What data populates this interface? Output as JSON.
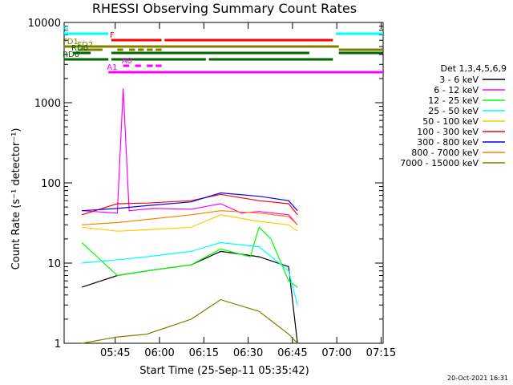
{
  "chart_data": {
    "type": "line",
    "title": "RHESSI Observing Summary Count Rates",
    "xlabel": "Start Time (25-Sep-11 05:35:42)",
    "ylabel": "Count Rate (s⁻¹ detector⁻¹)",
    "yscale": "log",
    "ylim": [
      1,
      10000
    ],
    "xlim_minutes": [
      -8,
      100
    ],
    "x_ticks": [
      "05:45",
      "06:00",
      "06:15",
      "06:30",
      "06:45",
      "07:00",
      "07:15"
    ],
    "y_ticks": [
      "1",
      "10",
      "100",
      "1000",
      "10000"
    ],
    "legend_title": "Det 1,3,4,5,6,9",
    "legend_placement": "right",
    "grid": false,
    "stamp": "20-Oct-2021 16:31",
    "series": [
      {
        "name": "3 - 6 keV",
        "color": "#000000",
        "x": [
          -2,
          10,
          20,
          35,
          45,
          58,
          68,
          71
        ],
        "y": [
          5,
          7,
          8,
          9.5,
          14,
          12,
          9,
          1
        ]
      },
      {
        "name": "6 - 12 keV",
        "color": "#ff00ff",
        "x": [
          -2,
          10,
          12,
          14,
          22,
          35,
          45,
          52,
          58,
          68,
          71
        ],
        "y": [
          45,
          42,
          1500,
          45,
          48,
          47,
          55,
          42,
          44,
          40,
          30
        ]
      },
      {
        "name": "12 - 25 keV",
        "color": "#00ff00",
        "x": [
          -2,
          10,
          20,
          35,
          45,
          55,
          58,
          62,
          68,
          71
        ],
        "y": [
          18,
          7,
          8,
          9.5,
          15,
          12,
          28,
          20,
          6,
          5
        ]
      },
      {
        "name": "25 - 50 keV",
        "color": "#00ffff",
        "x": [
          -2,
          10,
          20,
          35,
          45,
          58,
          68,
          71
        ],
        "y": [
          10,
          11,
          12,
          14,
          18,
          16,
          8,
          3
        ]
      },
      {
        "name": "50 - 100 keV",
        "color": "#ffcc00",
        "x": [
          -2,
          10,
          20,
          35,
          45,
          58,
          68,
          71
        ],
        "y": [
          28,
          25,
          26,
          28,
          40,
          33,
          30,
          25
        ]
      },
      {
        "name": "100 - 300 keV",
        "color": "#ff0000",
        "x": [
          -2,
          10,
          20,
          35,
          45,
          58,
          68,
          71
        ],
        "y": [
          40,
          55,
          56,
          60,
          72,
          60,
          55,
          40
        ]
      },
      {
        "name": "300 - 800 keV",
        "color": "#0000ff",
        "x": [
          -2,
          10,
          20,
          35,
          45,
          58,
          68,
          71
        ],
        "y": [
          45,
          48,
          52,
          58,
          75,
          68,
          60,
          45
        ]
      },
      {
        "name": "800 - 7000 keV",
        "color": "#ff8000",
        "x": [
          -2,
          10,
          20,
          35,
          45,
          58,
          68,
          71
        ],
        "y": [
          30,
          32,
          35,
          40,
          45,
          42,
          38,
          30
        ]
      },
      {
        "name": "7000 - 15000 keV",
        "color": "#808000",
        "x": [
          -2,
          10,
          20,
          35,
          45,
          58,
          68,
          71
        ],
        "y": [
          1,
          1.2,
          1.3,
          2,
          3.5,
          2.5,
          1.3,
          1
        ]
      }
    ],
    "flags": [
      {
        "label": "N",
        "color": "#00ffff",
        "x": [
          [
            -8,
            7
          ],
          [
            84,
            100
          ]
        ],
        "y_rel": 0.96
      },
      {
        "label": "F",
        "color": "#ff0000",
        "x": [
          [
            8,
            25
          ],
          [
            26,
            83
          ]
        ],
        "y_rel": 0.92
      },
      {
        "label": "FD1",
        "color": "#808000",
        "x": [
          [
            -8,
            85
          ]
        ],
        "y_rel": 0.88
      },
      {
        "label": "FD2",
        "color": "#808000",
        "x": [
          [
            -3,
            5
          ],
          [
            10,
            12
          ],
          [
            14,
            16
          ],
          [
            17,
            19
          ],
          [
            20,
            22
          ],
          [
            23,
            25
          ],
          [
            85,
            100
          ]
        ],
        "y_rel": 0.86
      },
      {
        "label": "RD0",
        "color": "#006400",
        "x": [
          [
            -5,
            1
          ],
          [
            8,
            75
          ],
          [
            85,
            100
          ]
        ],
        "y_rel": 0.84
      },
      {
        "label": "RD6",
        "color": "#006400",
        "x": [
          [
            -8,
            7
          ],
          [
            8,
            40
          ],
          [
            41,
            83
          ]
        ],
        "y_rel": 0.8
      },
      {
        "label": "A0",
        "color": "#ff00ff",
        "x": [
          [
            12,
            14
          ],
          [
            16,
            18
          ],
          [
            20,
            22
          ],
          [
            23,
            25
          ]
        ],
        "y_rel": 0.76
      },
      {
        "label": "A1",
        "color": "#ff00ff",
        "x": [
          [
            7,
            100
          ]
        ],
        "y_rel": 0.72
      }
    ]
  }
}
